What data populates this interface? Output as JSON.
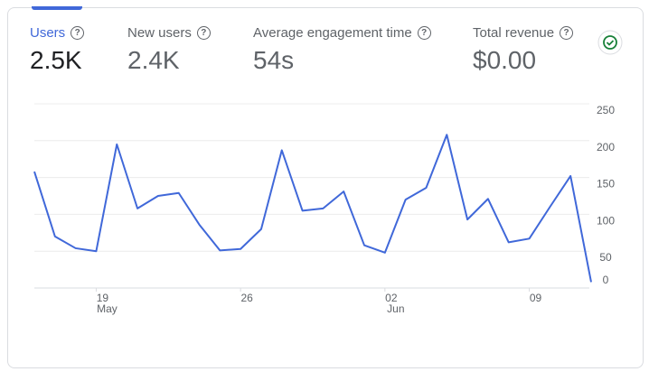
{
  "metrics": [
    {
      "label": "Users",
      "value": "2.5K"
    },
    {
      "label": "New users",
      "value": "2.4K"
    },
    {
      "label": "Average engagement time",
      "value": "54s"
    },
    {
      "label": "Total revenue",
      "value": "$0.00"
    }
  ],
  "chart_data": {
    "type": "line",
    "categories": [
      null,
      null,
      null,
      "19",
      null,
      null,
      null,
      null,
      null,
      null,
      "26",
      null,
      null,
      null,
      null,
      null,
      null,
      "02",
      null,
      null,
      null,
      null,
      null,
      null,
      "09",
      null,
      null,
      null
    ],
    "category_sublabels": [
      null,
      null,
      null,
      "May",
      null,
      null,
      null,
      null,
      null,
      null,
      null,
      null,
      null,
      null,
      null,
      null,
      null,
      "Jun",
      null,
      null,
      null,
      null,
      null,
      null,
      null,
      null,
      null,
      null
    ],
    "series": [
      {
        "name": "Users",
        "color": "#4068d9",
        "values": [
          158,
          70,
          54,
          50,
          195,
          108,
          125,
          129,
          86,
          51,
          53,
          80,
          187,
          105,
          108,
          131,
          58,
          48,
          120,
          136,
          208,
          93,
          121,
          62,
          67,
          110,
          152,
          8
        ]
      }
    ],
    "ylim": [
      0,
      250
    ],
    "yticks": [
      0,
      50,
      100,
      150,
      200,
      250
    ],
    "grid": true
  }
}
